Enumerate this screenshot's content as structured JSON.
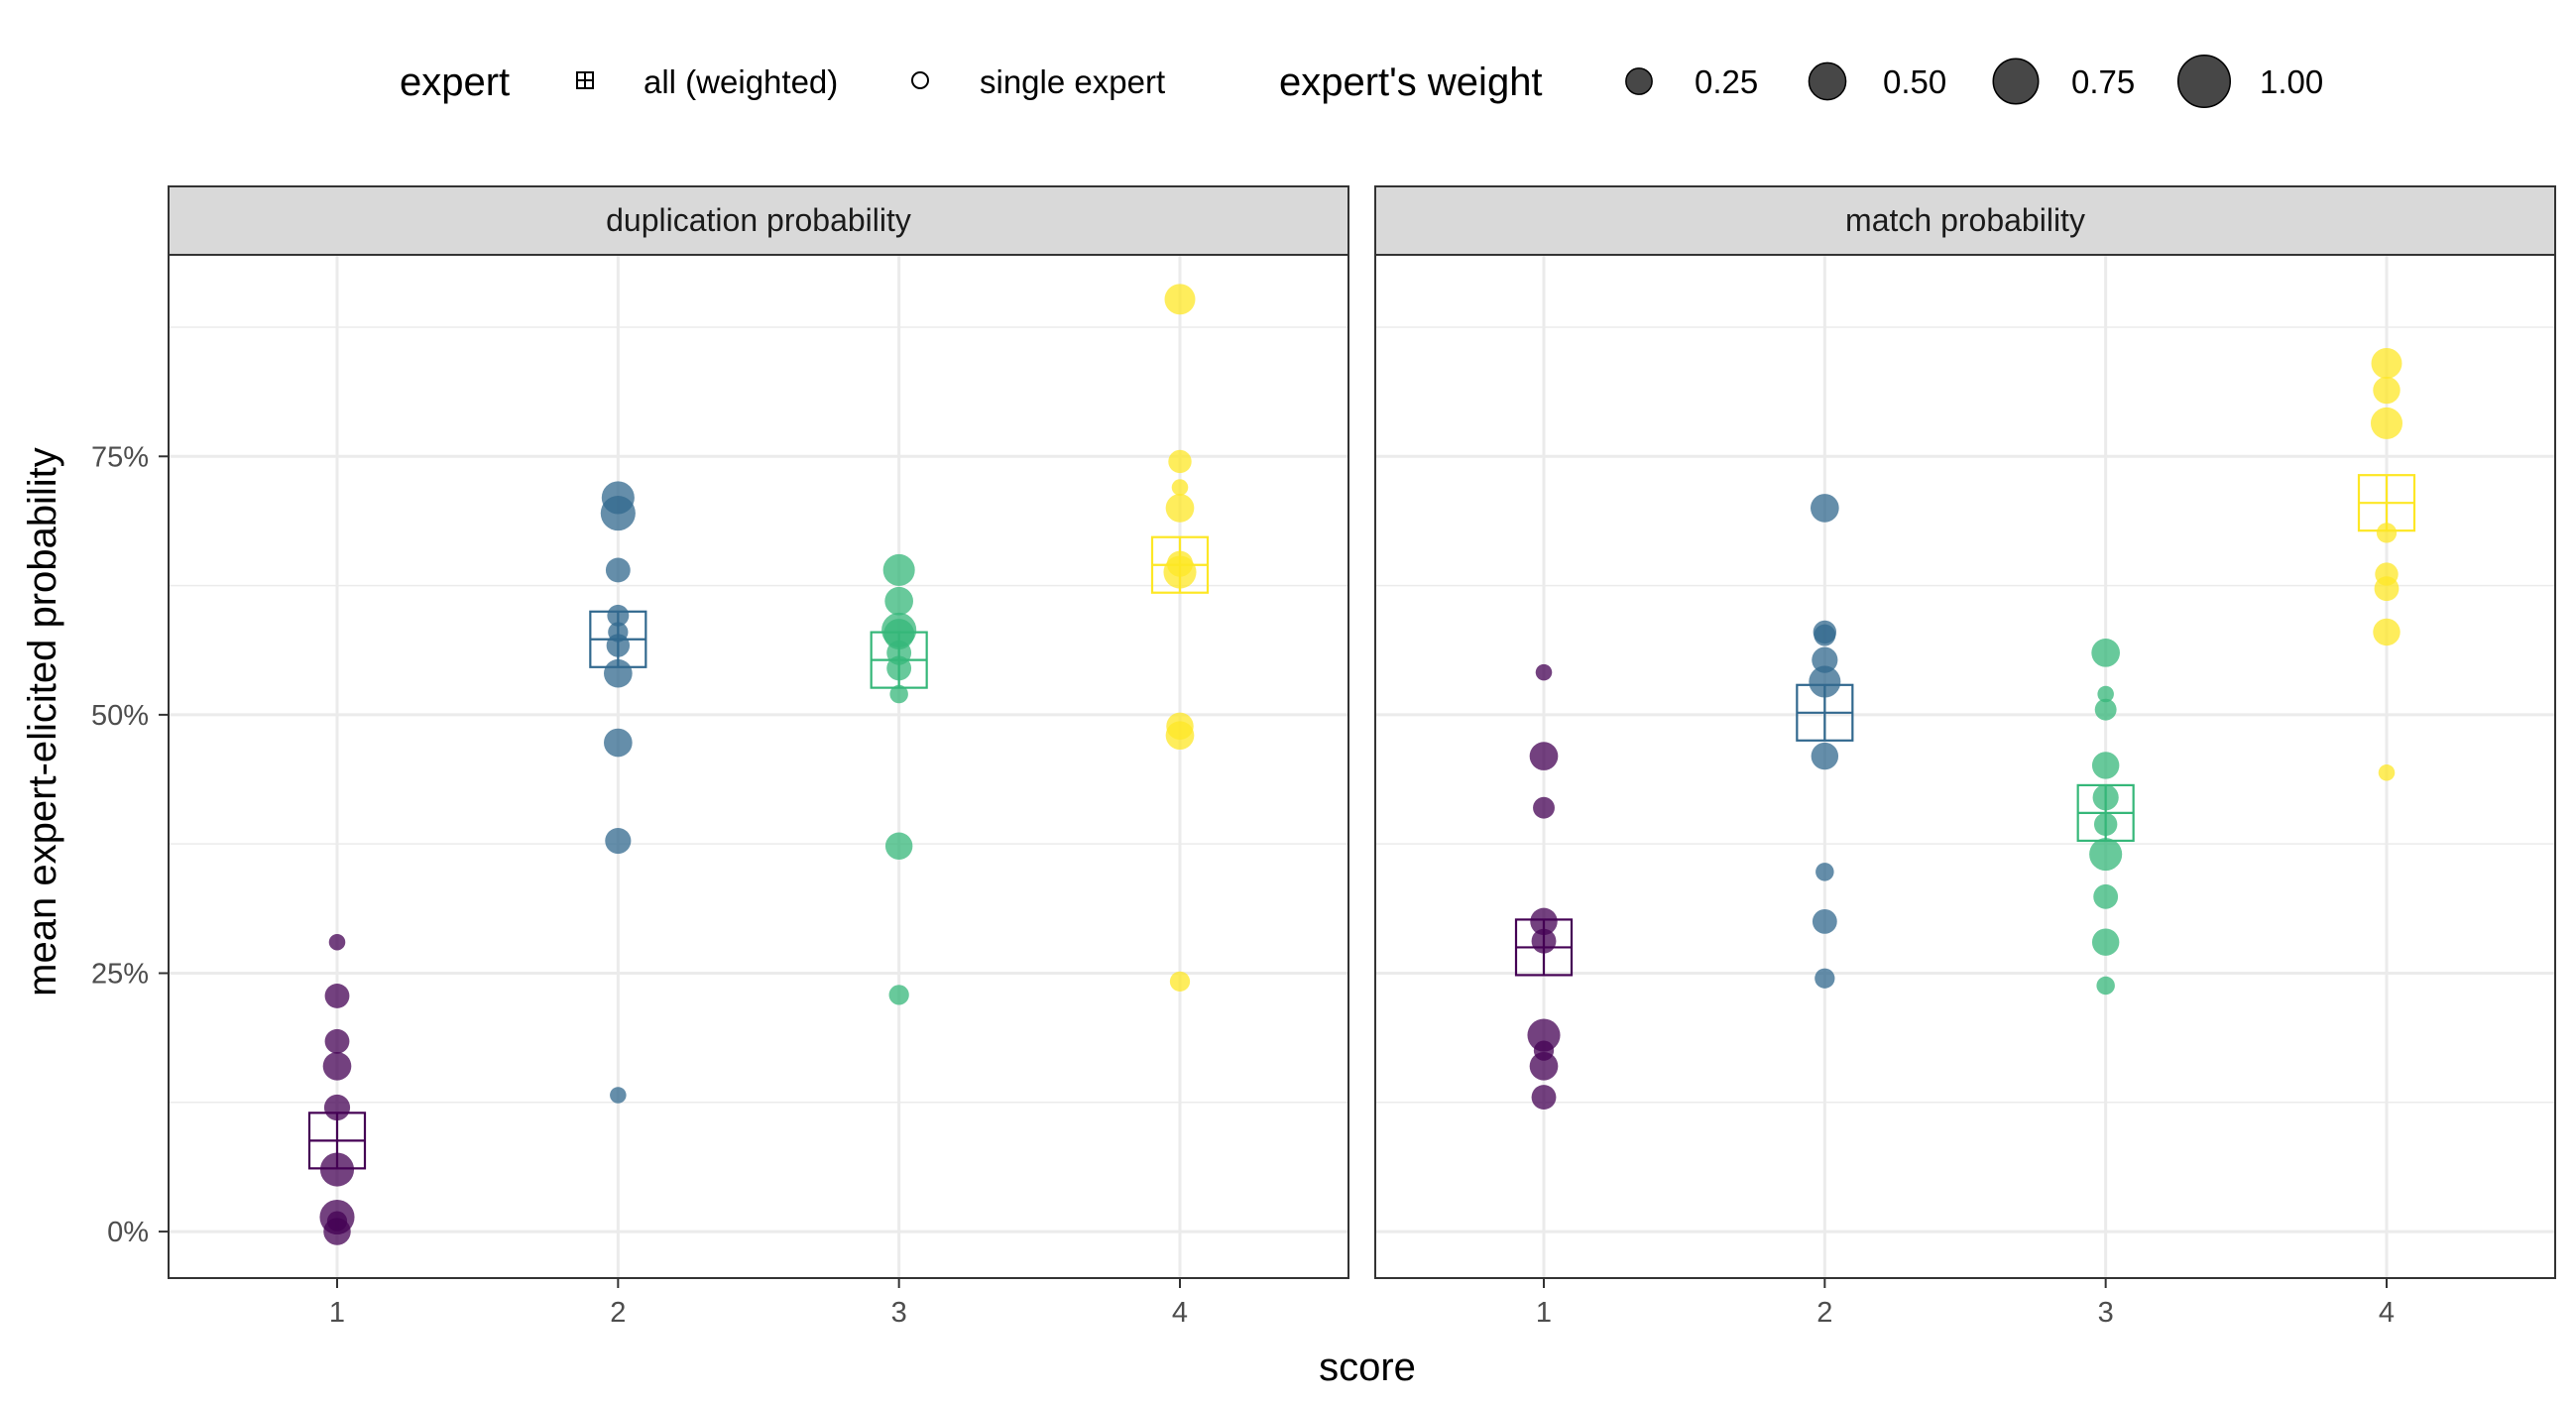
{
  "legend": {
    "expert_title": "expert",
    "expert_items": [
      {
        "label": "all (weighted)",
        "icon": "boxed-plus-icon"
      },
      {
        "label": "single expert",
        "icon": "open-circle-icon"
      }
    ],
    "weight_title": "expert's weight",
    "weight_items": [
      {
        "label": "0.25",
        "weight": 0.25
      },
      {
        "label": "0.50",
        "weight": 0.5
      },
      {
        "label": "0.75",
        "weight": 0.75
      },
      {
        "label": "1.00",
        "weight": 1.0
      }
    ]
  },
  "chart_data": {
    "type": "scatter",
    "xlabel": "score",
    "ylabel": "mean expert-elicited probability",
    "x_ticks": [
      "1",
      "2",
      "3",
      "4"
    ],
    "y_ticks": [
      "0%",
      "25%",
      "50%",
      "75%"
    ],
    "y_tick_values": [
      0,
      0.25,
      0.5,
      0.75
    ],
    "xlim": [
      0.4,
      4.6
    ],
    "ylim": [
      -0.045,
      0.945
    ],
    "grid": true,
    "legend_position": "top",
    "score_colors": {
      "1": "#440154",
      "2": "#31688e",
      "3": "#35b779",
      "4": "#fde725"
    },
    "panels": [
      {
        "title": "duplication probability",
        "weighted": [
          {
            "x": 1,
            "y": 0.088
          },
          {
            "x": 2,
            "y": 0.573
          },
          {
            "x": 3,
            "y": 0.553
          },
          {
            "x": 4,
            "y": 0.645
          }
        ],
        "experts": [
          {
            "x": 1,
            "y": 0.28,
            "w": 0.2
          },
          {
            "x": 1,
            "y": 0.228,
            "w": 0.45
          },
          {
            "x": 1,
            "y": 0.184,
            "w": 0.45
          },
          {
            "x": 1,
            "y": 0.16,
            "w": 0.6
          },
          {
            "x": 1,
            "y": 0.12,
            "w": 0.5
          },
          {
            "x": 1,
            "y": 0.06,
            "w": 0.85
          },
          {
            "x": 1,
            "y": 0.014,
            "w": 0.9
          },
          {
            "x": 1,
            "y": 0.01,
            "w": 0.3
          },
          {
            "x": 1,
            "y": 0.0,
            "w": 0.55
          },
          {
            "x": 2,
            "y": 0.71,
            "w": 0.8
          },
          {
            "x": 2,
            "y": 0.695,
            "w": 0.9
          },
          {
            "x": 2,
            "y": 0.64,
            "w": 0.45
          },
          {
            "x": 2,
            "y": 0.596,
            "w": 0.35
          },
          {
            "x": 2,
            "y": 0.58,
            "w": 0.3
          },
          {
            "x": 2,
            "y": 0.567,
            "w": 0.4
          },
          {
            "x": 2,
            "y": 0.54,
            "w": 0.6
          },
          {
            "x": 2,
            "y": 0.473,
            "w": 0.6
          },
          {
            "x": 2,
            "y": 0.378,
            "w": 0.5
          },
          {
            "x": 2,
            "y": 0.132,
            "w": 0.2
          },
          {
            "x": 3,
            "y": 0.64,
            "w": 0.75
          },
          {
            "x": 3,
            "y": 0.61,
            "w": 0.6
          },
          {
            "x": 3,
            "y": 0.582,
            "w": 0.9
          },
          {
            "x": 3,
            "y": 0.578,
            "w": 0.7
          },
          {
            "x": 3,
            "y": 0.56,
            "w": 0.45
          },
          {
            "x": 3,
            "y": 0.545,
            "w": 0.45
          },
          {
            "x": 3,
            "y": 0.52,
            "w": 0.25
          },
          {
            "x": 3,
            "y": 0.373,
            "w": 0.55
          },
          {
            "x": 3,
            "y": 0.229,
            "w": 0.3
          },
          {
            "x": 4,
            "y": 0.902,
            "w": 0.7
          },
          {
            "x": 4,
            "y": 0.745,
            "w": 0.4
          },
          {
            "x": 4,
            "y": 0.72,
            "w": 0.2
          },
          {
            "x": 4,
            "y": 0.7,
            "w": 0.6
          },
          {
            "x": 4,
            "y": 0.646,
            "w": 0.5
          },
          {
            "x": 4,
            "y": 0.638,
            "w": 0.8
          },
          {
            "x": 4,
            "y": 0.489,
            "w": 0.55
          },
          {
            "x": 4,
            "y": 0.48,
            "w": 0.6
          },
          {
            "x": 4,
            "y": 0.242,
            "w": 0.3
          }
        ]
      },
      {
        "title": "match probability",
        "weighted": [
          {
            "x": 1,
            "y": 0.275
          },
          {
            "x": 2,
            "y": 0.502
          },
          {
            "x": 3,
            "y": 0.405
          },
          {
            "x": 4,
            "y": 0.705
          }
        ],
        "experts": [
          {
            "x": 1,
            "y": 0.541,
            "w": 0.2
          },
          {
            "x": 1,
            "y": 0.46,
            "w": 0.6
          },
          {
            "x": 1,
            "y": 0.41,
            "w": 0.35
          },
          {
            "x": 1,
            "y": 0.3,
            "w": 0.55
          },
          {
            "x": 1,
            "y": 0.281,
            "w": 0.45
          },
          {
            "x": 1,
            "y": 0.19,
            "w": 0.8
          },
          {
            "x": 1,
            "y": 0.175,
            "w": 0.3
          },
          {
            "x": 1,
            "y": 0.16,
            "w": 0.6
          },
          {
            "x": 1,
            "y": 0.13,
            "w": 0.45
          },
          {
            "x": 2,
            "y": 0.7,
            "w": 0.6
          },
          {
            "x": 2,
            "y": 0.58,
            "w": 0.4
          },
          {
            "x": 2,
            "y": 0.577,
            "w": 0.35
          },
          {
            "x": 2,
            "y": 0.553,
            "w": 0.5
          },
          {
            "x": 2,
            "y": 0.532,
            "w": 0.75
          },
          {
            "x": 2,
            "y": 0.46,
            "w": 0.55
          },
          {
            "x": 2,
            "y": 0.348,
            "w": 0.25
          },
          {
            "x": 2,
            "y": 0.3,
            "w": 0.45
          },
          {
            "x": 2,
            "y": 0.245,
            "w": 0.3
          },
          {
            "x": 3,
            "y": 0.56,
            "w": 0.6
          },
          {
            "x": 3,
            "y": 0.52,
            "w": 0.2
          },
          {
            "x": 3,
            "y": 0.505,
            "w": 0.35
          },
          {
            "x": 3,
            "y": 0.451,
            "w": 0.55
          },
          {
            "x": 3,
            "y": 0.42,
            "w": 0.5
          },
          {
            "x": 3,
            "y": 0.394,
            "w": 0.4
          },
          {
            "x": 3,
            "y": 0.365,
            "w": 0.8
          },
          {
            "x": 3,
            "y": 0.324,
            "w": 0.45
          },
          {
            "x": 3,
            "y": 0.28,
            "w": 0.55
          },
          {
            "x": 3,
            "y": 0.238,
            "w": 0.25
          },
          {
            "x": 4,
            "y": 0.84,
            "w": 0.7
          },
          {
            "x": 4,
            "y": 0.814,
            "w": 0.55
          },
          {
            "x": 4,
            "y": 0.782,
            "w": 0.75
          },
          {
            "x": 4,
            "y": 0.676,
            "w": 0.3
          },
          {
            "x": 4,
            "y": 0.636,
            "w": 0.4
          },
          {
            "x": 4,
            "y": 0.622,
            "w": 0.45
          },
          {
            "x": 4,
            "y": 0.58,
            "w": 0.55
          },
          {
            "x": 4,
            "y": 0.444,
            "w": 0.2
          }
        ]
      }
    ]
  }
}
